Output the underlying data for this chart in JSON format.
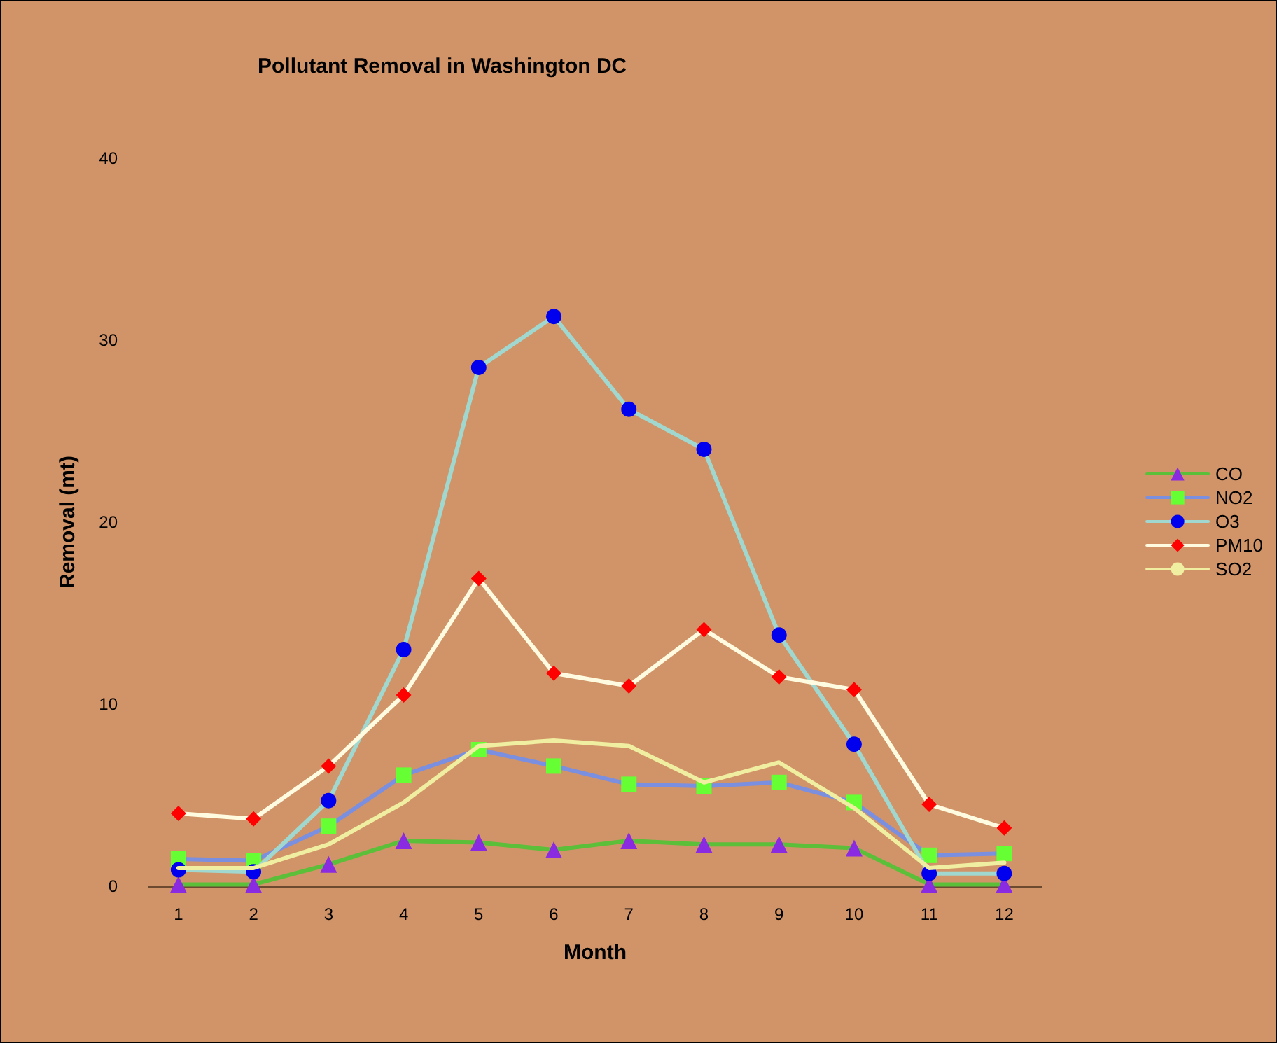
{
  "chart_data": {
    "type": "line",
    "title": "Pollutant Removal in Washington DC",
    "xlabel": "Month",
    "ylabel": "Removal (mt)",
    "x": [
      1,
      2,
      3,
      4,
      5,
      6,
      7,
      8,
      9,
      10,
      11,
      12
    ],
    "xlim": [
      0.6,
      12.5
    ],
    "xticks": [
      1,
      2,
      3,
      4,
      5,
      6,
      7,
      8,
      9,
      10,
      11,
      12
    ],
    "ylim": [
      0,
      40
    ],
    "yticks": [
      0,
      10,
      20,
      30,
      40
    ],
    "grid": false,
    "legend": "right",
    "series": [
      {
        "name": "CO",
        "color": "#5bbf3a",
        "marker": "triangle",
        "colors": [
          "#8a2be2",
          "#8a2be2",
          "#8a2be2",
          "#8a2be2",
          "#8a2be2",
          "#8a2be2",
          "#8a2be2",
          "#8a2be2",
          "#8a2be2",
          "#8a2be2",
          "#8a2be2",
          "#8a2be2"
        ],
        "values": [
          0.1,
          0.1,
          1.2,
          2.5,
          2.4,
          2.0,
          2.5,
          2.3,
          2.3,
          2.1,
          0.1,
          0.1
        ]
      },
      {
        "name": "NO2",
        "color": "#7b8fe0",
        "marker": "square",
        "colors": [
          "#66ff33",
          "#66ff33",
          "#66ff33",
          "#66ff33",
          "#66ff33",
          "#66ff33",
          "#66ff33",
          "#66ff33",
          "#66ff33",
          "#66ff33",
          "#66ff33",
          "#66ff33"
        ],
        "values": [
          1.5,
          1.4,
          3.3,
          6.1,
          7.5,
          6.6,
          5.6,
          5.5,
          5.7,
          4.6,
          1.7,
          1.8
        ]
      },
      {
        "name": "O3",
        "color": "#a0d8d0",
        "marker": "circle",
        "colors": [
          "#0000ee",
          "#0000ee",
          "#0000ee",
          "#0000ee",
          "#0000ee",
          "#0000ee",
          "#0000ee",
          "#0000ee",
          "#0000ee",
          "#0000ee",
          "#0000ee",
          "#0000ee"
        ],
        "values": [
          0.9,
          0.8,
          4.7,
          13.0,
          28.5,
          31.3,
          26.2,
          24.0,
          13.8,
          7.8,
          0.7,
          0.7
        ]
      },
      {
        "name": "PM10",
        "color": "#fffbe0",
        "marker": "diamond",
        "colors": [
          "#ff0000",
          "#ff0000",
          "#ff0000",
          "#ff0000",
          "#ff0000",
          "#ff0000",
          "#ff0000",
          "#ff0000",
          "#ff0000",
          "#ff0000",
          "#ff0000",
          "#ff0000"
        ],
        "values": [
          4.0,
          3.7,
          6.6,
          10.5,
          16.9,
          11.7,
          11.0,
          14.1,
          11.5,
          10.8,
          4.5,
          3.2
        ]
      },
      {
        "name": "SO2",
        "color": "#f0eea0",
        "marker": "none",
        "values": [
          1.0,
          1.0,
          2.3,
          4.6,
          7.7,
          8.0,
          7.7,
          5.7,
          6.8,
          4.3,
          1.0,
          1.3
        ]
      }
    ]
  }
}
